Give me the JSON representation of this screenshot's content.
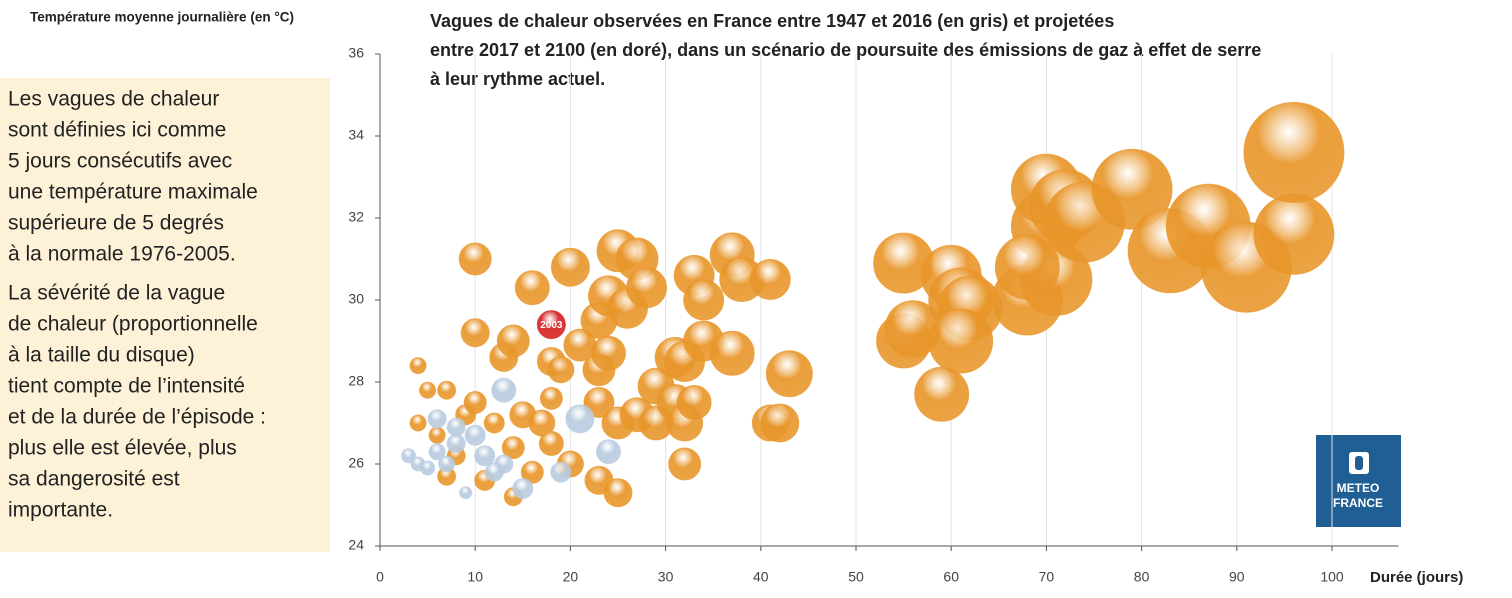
{
  "chart_data": {
    "type": "bubble",
    "title_lines": [
      "Vagues de chaleur observées en France entre 1947 et 2016 (en gris) et projetées",
      "entre 2017 et 2100 (en doré), dans un scénario de poursuite des émissions de gaz à effet de serre",
      "à leur rythme actuel."
    ],
    "y_label": "Température moyenne journalière (en °C)",
    "x_label": "Durée (jours)",
    "xlim": [
      0,
      107
    ],
    "ylim": [
      24,
      36
    ],
    "xticks": [
      0,
      10,
      20,
      30,
      40,
      50,
      60,
      70,
      80,
      90,
      100
    ],
    "yticks": [
      24,
      26,
      28,
      30,
      32,
      34,
      36
    ],
    "grid": "x",
    "series": [
      {
        "color": "#e8962a",
        "x": [
          4,
          5,
          4,
          6,
          7,
          7,
          8,
          9,
          10,
          11,
          12,
          14,
          14,
          15,
          16,
          17,
          18,
          18,
          18,
          19,
          20,
          20,
          16,
          10,
          10,
          13,
          14,
          21,
          23,
          23,
          23,
          23,
          25,
          24,
          24,
          26,
          25,
          27,
          28,
          25,
          27,
          29,
          29,
          31,
          31,
          32,
          32,
          32,
          33,
          33,
          34,
          34,
          37,
          37,
          38,
          41,
          41,
          42,
          43,
          55,
          55,
          56,
          60,
          61,
          62,
          61,
          59,
          68,
          70,
          71,
          68,
          70,
          72,
          74,
          79,
          83,
          87,
          91,
          96,
          96
        ],
        "values": [
          28.4,
          27.8,
          27.0,
          26.7,
          27.8,
          25.7,
          26.2,
          27.2,
          27.5,
          25.6,
          27.0,
          25.2,
          26.4,
          27.2,
          25.8,
          27.0,
          26.5,
          27.6,
          28.5,
          28.3,
          26.0,
          30.8,
          30.3,
          31.0,
          29.2,
          28.6,
          29.0,
          28.9,
          29.5,
          28.3,
          27.5,
          25.6,
          25.3,
          28.7,
          30.1,
          29.8,
          31.2,
          31.0,
          30.3,
          27.0,
          27.2,
          27.0,
          27.9,
          27.5,
          28.6,
          28.5,
          27.0,
          26.0,
          27.5,
          30.6,
          30.0,
          29.0,
          28.7,
          31.1,
          30.5,
          30.5,
          27.0,
          27.0,
          28.2,
          30.9,
          29.0,
          29.3,
          30.6,
          30.0,
          29.8,
          29.0,
          27.7,
          30.0,
          31.8,
          30.5,
          30.8,
          32.7,
          32.3,
          31.9,
          32.7,
          31.2,
          31.8,
          30.8,
          31.6,
          33.6
        ],
        "sizes": [
          8,
          8,
          8,
          8,
          9,
          9,
          9,
          10,
          11,
          10,
          10,
          9,
          11,
          13,
          11,
          13,
          12,
          11,
          14,
          13,
          13,
          19,
          17,
          16,
          14,
          14,
          16,
          16,
          18,
          16,
          15,
          14,
          14,
          17,
          20,
          20,
          21,
          21,
          20,
          16,
          17,
          17,
          18,
          18,
          20,
          20,
          18,
          16,
          17,
          20,
          20,
          20,
          22,
          22,
          22,
          20,
          18,
          19,
          23,
          30,
          27,
          28,
          30,
          32,
          32,
          32,
          27,
          35,
          35,
          36,
          32,
          35,
          36,
          40,
          40,
          42,
          42,
          45,
          40,
          50
        ]
      },
      {
        "color": "#b9cbe0",
        "x": [
          3,
          4,
          5,
          6,
          7,
          8,
          9,
          10,
          11,
          13,
          13,
          15,
          19,
          21,
          24,
          6,
          8,
          12
        ],
        "values": [
          26.2,
          26.0,
          25.9,
          26.3,
          26.0,
          26.5,
          25.3,
          26.7,
          26.2,
          27.8,
          26.0,
          25.4,
          25.8,
          27.1,
          26.3,
          27.1,
          26.9,
          25.8
        ],
        "sizes": [
          7,
          7,
          7,
          8,
          8,
          9,
          6,
          10,
          10,
          12,
          9,
          10,
          10,
          14,
          12,
          9,
          9,
          9
        ]
      },
      {
        "color": "#d42020",
        "x": [
          18
        ],
        "values": [
          29.4
        ],
        "sizes": [
          14
        ],
        "value_labels": [
          "2003"
        ]
      }
    ]
  },
  "sidebar": {
    "paragraphs": [
      [
        "Les vagues de chaleur",
        "sont définies ici comme",
        "5 jours consécutifs avec",
        "une température maximale",
        "supérieure de 5 degrés",
        "à la normale 1976-2005."
      ],
      [
        "La sévérité de la vague",
        "de chaleur (proportionnelle",
        "à la taille du disque)",
        "tient compte de l’intensité",
        "et de la durée de l’épisode :",
        "plus elle est élevée, plus",
        "sa dangerosité est",
        "importante."
      ]
    ]
  },
  "logo": {
    "lines": [
      "METEO",
      "FRANCE"
    ]
  }
}
